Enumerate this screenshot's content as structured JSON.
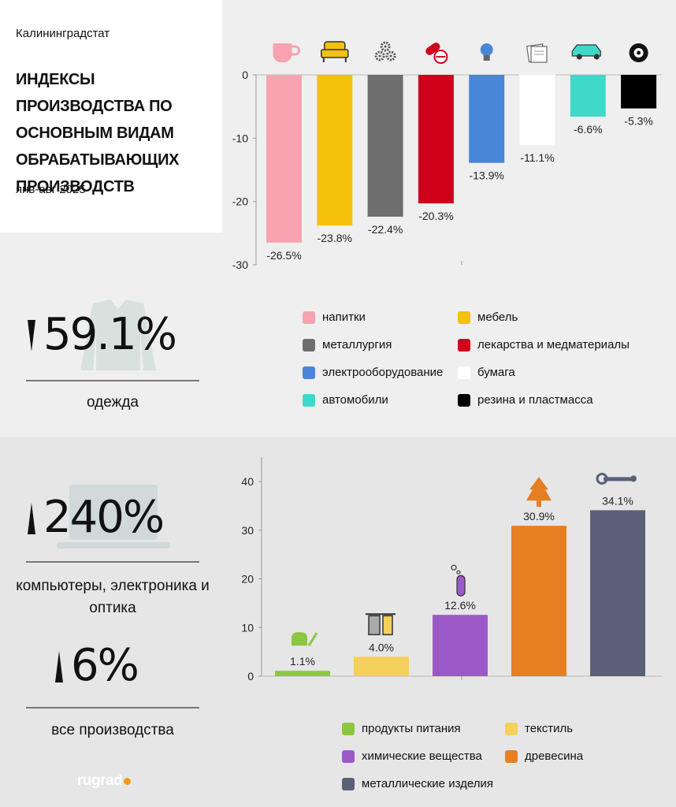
{
  "header": {
    "source": "Калининградстат",
    "title": "ИНДЕКСЫ ПРОИЗВОДСТВА ПО ОСНОВНЫМ ВИДАМ ОБРАБАТЫВАЮЩИХ ПРОИЗВОДСТВ",
    "period": "янв-авг 2025"
  },
  "stats": {
    "clothing": {
      "value": "59.1%",
      "label": "одежда",
      "direction": "down"
    },
    "computers": {
      "value": "240%",
      "label": "компьютеры, электроника и оптика",
      "direction": "up"
    },
    "all": {
      "value": "6%",
      "label": "все производства",
      "direction": "up"
    }
  },
  "logo": {
    "text": "rugrad"
  },
  "chart_data": [
    {
      "type": "bar",
      "categories": [
        "напитки",
        "мебель",
        "металлургия",
        "лекарства и медматериалы",
        "электрооборудование",
        "бумага",
        "автомобили",
        "резина и пластмасса"
      ],
      "values": [
        -26.5,
        -23.8,
        -22.4,
        -20.3,
        -13.9,
        -11.1,
        -6.6,
        -5.3
      ],
      "data_labels": [
        "-26.5%",
        "-23.8%",
        "-22.4%",
        "-20.3%",
        "-13.9%",
        "-11.1%",
        "-6.6%",
        "-5.3%"
      ],
      "colors": [
        "#f9a3b0",
        "#f4c20d",
        "#6e6e6e",
        "#d0021b",
        "#4a86d8",
        "#ffffff",
        "#3fd9c9",
        "#000000"
      ],
      "icons": [
        "cup-icon",
        "armchair-icon",
        "gears-icon",
        "pills-icon",
        "lightbulb-icon",
        "paper-icon",
        "car-icon",
        "tire-icon"
      ],
      "ylim": [
        -30,
        0
      ],
      "yticks": [
        0,
        -10,
        -20,
        -30
      ],
      "legend_position": "bottom"
    },
    {
      "type": "bar",
      "categories": [
        "продукты питания",
        "текстиль",
        "химические вещества",
        "древесина",
        "металлические изделия"
      ],
      "values": [
        1.1,
        4.0,
        12.6,
        30.9,
        34.1
      ],
      "data_labels": [
        "1.1%",
        "4.0%",
        "12.6%",
        "30.9%",
        "34.1%"
      ],
      "colors": [
        "#8dc63f",
        "#f5d05a",
        "#9b59c8",
        "#e67e22",
        "#5a6078"
      ],
      "icons": [
        "bread-icon",
        "spools-icon",
        "test-tube-icon",
        "tree-icon",
        "wrench-icon"
      ],
      "ylim": [
        0,
        40
      ],
      "yticks": [
        0,
        10,
        20,
        30,
        40
      ],
      "legend_position": "bottom"
    }
  ]
}
